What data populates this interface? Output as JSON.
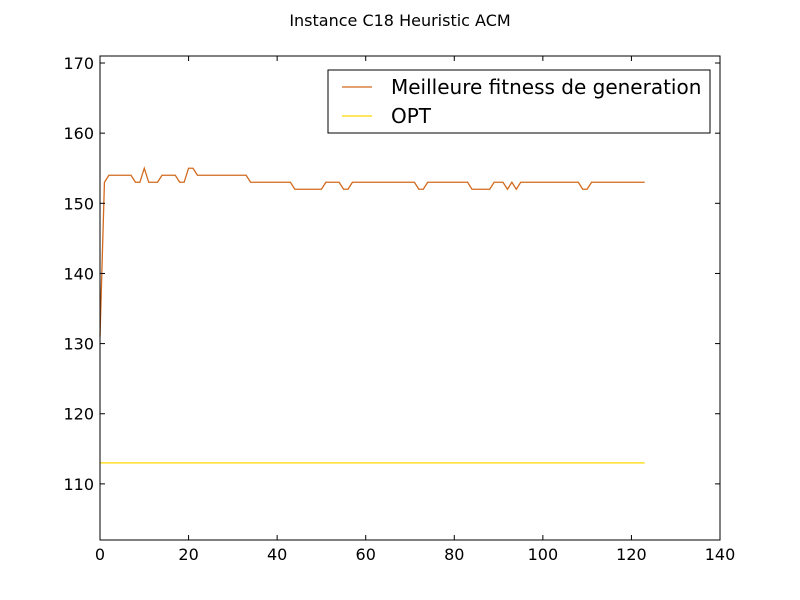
{
  "chart_data": {
    "type": "line",
    "title": "Instance C18 Heuristic ACM",
    "xlabel": "",
    "ylabel": "",
    "xlim": [
      0,
      140
    ],
    "ylim": [
      102,
      171
    ],
    "xticks": [
      0,
      20,
      40,
      60,
      80,
      100,
      120,
      140
    ],
    "yticks": [
      110,
      120,
      130,
      140,
      150,
      160,
      170
    ],
    "grid": false,
    "legend": {
      "position": "top-right"
    },
    "series": [
      {
        "name": "Meilleure fitness de generation",
        "color": "#d2691e",
        "x": [
          0,
          1,
          2,
          3,
          4,
          5,
          6,
          7,
          8,
          9,
          10,
          11,
          12,
          13,
          14,
          15,
          16,
          17,
          18,
          19,
          20,
          21,
          22,
          23,
          24,
          25,
          26,
          27,
          28,
          29,
          30,
          31,
          32,
          33,
          34,
          35,
          36,
          37,
          38,
          39,
          40,
          41,
          42,
          43,
          44,
          45,
          46,
          47,
          48,
          49,
          50,
          51,
          52,
          53,
          54,
          55,
          56,
          57,
          58,
          59,
          60,
          61,
          62,
          63,
          64,
          65,
          66,
          67,
          68,
          69,
          70,
          71,
          72,
          73,
          74,
          75,
          76,
          77,
          78,
          79,
          80,
          81,
          82,
          83,
          84,
          85,
          86,
          87,
          88,
          89,
          90,
          91,
          92,
          93,
          94,
          95,
          96,
          97,
          98,
          99,
          100,
          101,
          102,
          103,
          104,
          105,
          106,
          107,
          108,
          109,
          110,
          111,
          112,
          113,
          114,
          115,
          116,
          117,
          118,
          119,
          120,
          121,
          122,
          123
        ],
        "y": [
          131,
          153,
          154,
          154,
          154,
          154,
          154,
          154,
          153,
          153,
          155,
          153,
          153,
          153,
          154,
          154,
          154,
          154,
          153,
          153,
          155,
          155,
          154,
          154,
          154,
          154,
          154,
          154,
          154,
          154,
          154,
          154,
          154,
          154,
          153,
          153,
          153,
          153,
          153,
          153,
          153,
          153,
          153,
          153,
          152,
          152,
          152,
          152,
          152,
          152,
          152,
          153,
          153,
          153,
          153,
          152,
          152,
          153,
          153,
          153,
          153,
          153,
          153,
          153,
          153,
          153,
          153,
          153,
          153,
          153,
          153,
          153,
          152,
          152,
          153,
          153,
          153,
          153,
          153,
          153,
          153,
          153,
          153,
          153,
          152,
          152,
          152,
          152,
          152,
          153,
          153,
          153,
          152,
          153,
          152,
          153,
          153,
          153,
          153,
          153,
          153,
          153,
          153,
          153,
          153,
          153,
          153,
          153,
          153,
          152,
          152,
          153,
          153,
          153,
          153,
          153,
          153,
          153,
          153,
          153,
          153,
          153,
          153,
          153
        ]
      },
      {
        "name": "OPT",
        "color": "#ffd700",
        "x": [
          0,
          123
        ],
        "y": [
          113,
          113
        ]
      }
    ]
  }
}
